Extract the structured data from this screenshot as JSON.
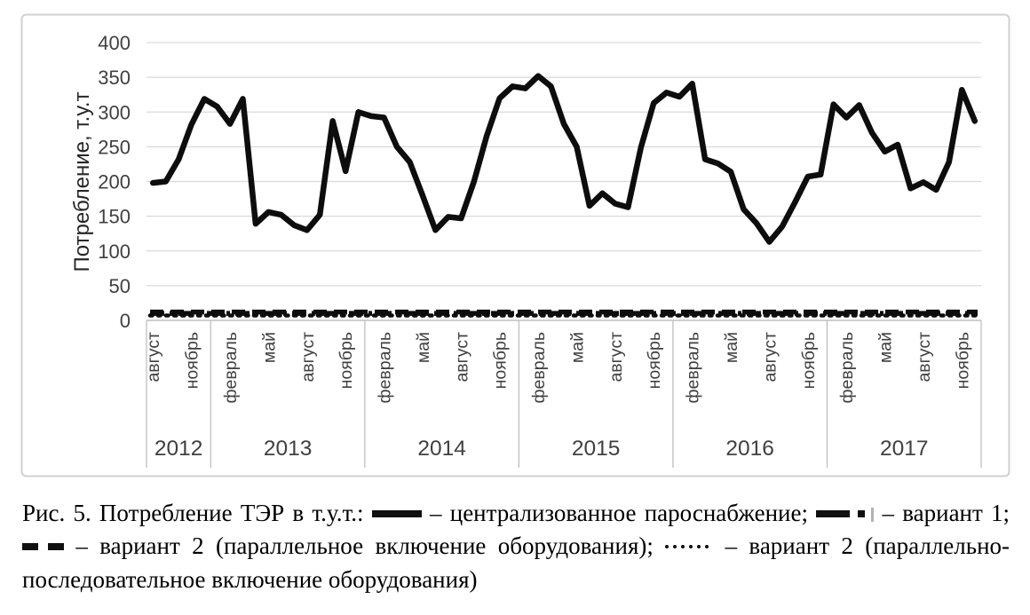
{
  "figure": {
    "border_color": "#d0d0d0",
    "background": "#ffffff"
  },
  "chart_data": {
    "type": "line",
    "title": "",
    "xlabel": "",
    "ylabel": "Потребление, т.у.т",
    "ylim": [
      0,
      400
    ],
    "y_ticks": [
      0,
      50,
      100,
      150,
      200,
      250,
      300,
      350,
      400
    ],
    "grid": true,
    "legend_position": "in figure caption below chart",
    "frequency": "monthly",
    "x_range": "август 2012 — декабрь 2017",
    "years": [
      {
        "label": "2012",
        "start_index": 0,
        "month_count": 5,
        "ticks": [
          {
            "label": "август",
            "index": 0
          },
          {
            "label": "ноябрь",
            "index": 3
          }
        ]
      },
      {
        "label": "2013",
        "start_index": 5,
        "month_count": 12,
        "ticks": [
          {
            "label": "февраль",
            "index": 6
          },
          {
            "label": "май",
            "index": 9
          },
          {
            "label": "август",
            "index": 12
          },
          {
            "label": "ноябрь",
            "index": 15
          }
        ]
      },
      {
        "label": "2014",
        "start_index": 17,
        "month_count": 12,
        "ticks": [
          {
            "label": "февраль",
            "index": 18
          },
          {
            "label": "май",
            "index": 21
          },
          {
            "label": "август",
            "index": 24
          },
          {
            "label": "ноябрь",
            "index": 27
          }
        ]
      },
      {
        "label": "2015",
        "start_index": 29,
        "month_count": 12,
        "ticks": [
          {
            "label": "февраль",
            "index": 30
          },
          {
            "label": "май",
            "index": 33
          },
          {
            "label": "август",
            "index": 36
          },
          {
            "label": "ноябрь",
            "index": 39
          }
        ]
      },
      {
        "label": "2016",
        "start_index": 41,
        "month_count": 12,
        "ticks": [
          {
            "label": "февраль",
            "index": 42
          },
          {
            "label": "май",
            "index": 45
          },
          {
            "label": "август",
            "index": 48
          },
          {
            "label": "ноябрь",
            "index": 51
          }
        ]
      },
      {
        "label": "2017",
        "start_index": 53,
        "month_count": 12,
        "ticks": [
          {
            "label": "февраль",
            "index": 54
          },
          {
            "label": "май",
            "index": 57
          },
          {
            "label": "август",
            "index": 60
          },
          {
            "label": "ноябрь",
            "index": 63
          }
        ]
      }
    ],
    "series": [
      {
        "name": "централизованное пароснабжение",
        "style": "solid",
        "color": "#0d0d0d",
        "values": [
          198,
          200,
          232,
          282,
          319,
          308,
          283,
          319,
          139,
          156,
          152,
          137,
          130,
          152,
          287,
          215,
          300,
          294,
          292,
          250,
          228,
          180,
          130,
          149,
          147,
          200,
          266,
          320,
          337,
          334,
          352,
          337,
          283,
          250,
          165,
          183,
          168,
          163,
          249,
          313,
          328,
          322,
          341,
          232,
          226,
          214,
          160,
          140,
          113,
          135,
          170,
          207,
          210,
          311,
          292,
          310,
          270,
          243,
          253,
          190,
          199,
          188,
          228,
          332,
          287
        ]
      },
      {
        "name": "вариант 1",
        "style": "dash-dot",
        "color": "#0d0d0d",
        "approx_value": 10,
        "note": "практически постоянная линия у нуля, сливается с другими вариантами"
      },
      {
        "name": "вариант 2 (параллельное включение оборудования)",
        "style": "dashed",
        "color": "#0d0d0d",
        "approx_value": 12,
        "note": "практически постоянная линия у нуля, сливается с другими вариантами"
      },
      {
        "name": "вариант 2 (параллельно-последовательное включение оборудования)",
        "style": "dotted",
        "color": "#0d0d0d",
        "approx_value": 7,
        "note": "практически постоянная линия у нуля, сливается с другими вариантами"
      }
    ],
    "colors": {
      "line": "#0d0d0d",
      "grid": "#d9d9d9",
      "axis": "#bfbfbf",
      "tick_text": "#404040",
      "axis_title_text": "#262626"
    }
  },
  "caption": {
    "intro": "Рис. 5. Потребление ТЭР в т.у.т.:",
    "central": "– централизованное пароснабжение;",
    "variant1": "– вариант 1;",
    "variant2_parallel": "– вариант 2 (параллельное включение оборудования);",
    "variant2_serial": "– вариант 2 (параллельно-последовательное включение оборудования)"
  }
}
